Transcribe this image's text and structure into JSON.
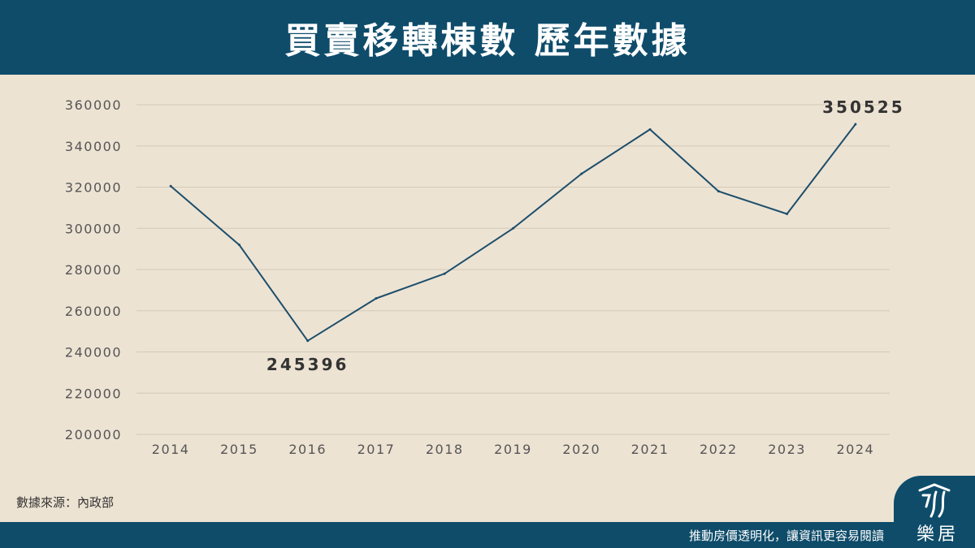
{
  "header": {
    "title": "買賣移轉棟數 歷年數據"
  },
  "source_note": "數據來源：內政部",
  "footer": {
    "slogan": "推動房價透明化，讓資訊更容易閱讀"
  },
  "logo": {
    "text": "樂居"
  },
  "colors": {
    "primary": "#0e4c6a",
    "background": "#ede3d3",
    "line": "#1c4e6b"
  },
  "chart_data": {
    "type": "line",
    "title": "",
    "xlabel": "",
    "ylabel": "",
    "x": [
      "2014",
      "2015",
      "2016",
      "2017",
      "2018",
      "2019",
      "2020",
      "2021",
      "2022",
      "2023",
      "2024"
    ],
    "y_ticks": [
      "200000",
      "220000",
      "240000",
      "260000",
      "280000",
      "300000",
      "320000",
      "340000",
      "360000"
    ],
    "ylim": [
      200000,
      360000
    ],
    "grid": true,
    "series": [
      {
        "values": [
          320500,
          292000,
          245396,
          266000,
          278000,
          300000,
          326500,
          348000,
          318000,
          307000,
          350525
        ]
      }
    ],
    "annotations": [
      {
        "index": 2,
        "text": "245396"
      },
      {
        "index": 10,
        "text": "350525"
      }
    ]
  }
}
